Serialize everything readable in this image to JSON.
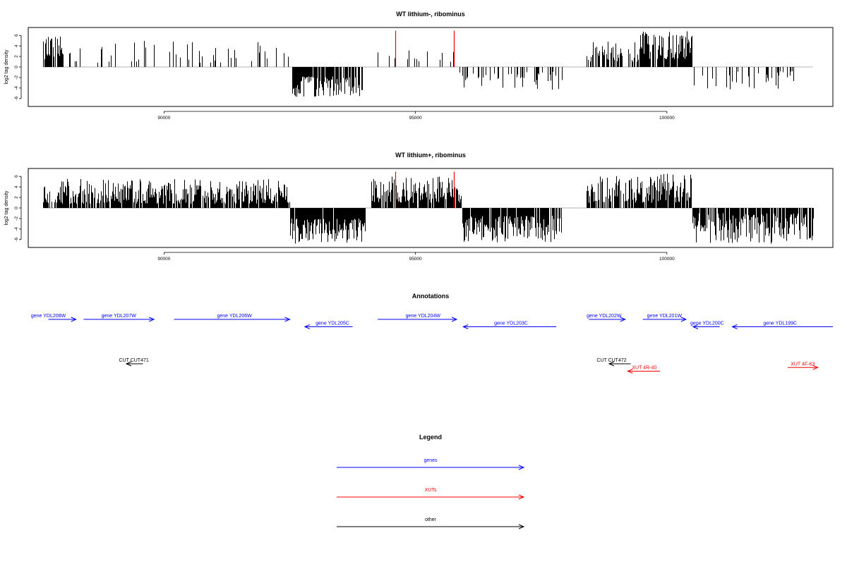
{
  "chart_data": [
    {
      "type": "bar",
      "title": "WT lithium-, ribominus",
      "xlabel": "",
      "ylabel": "log2 tag density",
      "xlim": [
        87300,
        103300
      ],
      "ylim": [
        -7.5,
        7.5
      ],
      "xticks": [
        90000,
        95000,
        100000
      ],
      "xtick_labels": [
        "90000",
        "95000",
        "100000"
      ],
      "yticks": [
        6,
        4,
        2,
        0,
        -2,
        -4,
        -6
      ],
      "ytick_labels": [
        "6",
        "4",
        "2",
        "0",
        "-2",
        "-4",
        "-6"
      ],
      "baseline": {
        "x": [
          87600,
          102900
        ],
        "color": "#999999"
      },
      "markers": [
        {
          "x": 94600,
          "color": "#ff0000"
        },
        {
          "x": 95760,
          "color": "#ff0000"
        }
      ],
      "segments": [
        {
          "from": 87600,
          "to": 88000,
          "sign": 1,
          "density": 0.9,
          "min": 1.5,
          "max": 5.8
        },
        {
          "from": 88100,
          "to": 92550,
          "sign": 1,
          "density": 0.13,
          "min": 0.8,
          "max": 5.0
        },
        {
          "from": 92550,
          "to": 93950,
          "sign": -1,
          "density": 0.9,
          "min": 1.8,
          "max": 5.8
        },
        {
          "from": 94200,
          "to": 95760,
          "sign": 1,
          "density": 0.12,
          "min": 0.8,
          "max": 3.5
        },
        {
          "from": 95880,
          "to": 97950,
          "sign": -1,
          "density": 0.28,
          "min": 0.8,
          "max": 4.4
        },
        {
          "from": 98400,
          "to": 99450,
          "sign": 1,
          "density": 0.5,
          "min": 1.0,
          "max": 5.0
        },
        {
          "from": 99450,
          "to": 100500,
          "sign": 1,
          "density": 0.9,
          "min": 1.5,
          "max": 6.8
        },
        {
          "from": 100500,
          "to": 102600,
          "sign": -1,
          "density": 0.2,
          "min": 0.8,
          "max": 4.3
        },
        {
          "from": 102300,
          "to": 102800,
          "sign": 1,
          "density": 0.05,
          "min": 0.8,
          "max": 2.6
        }
      ]
    },
    {
      "type": "bar",
      "title": "WT lithium+, ribominus",
      "xlabel": "",
      "ylabel": "log2 tag density",
      "xlim": [
        87300,
        103300
      ],
      "ylim": [
        -7.5,
        7.5
      ],
      "xticks": [
        90000,
        95000,
        100000
      ],
      "xtick_labels": [
        "90000",
        "95000",
        "100000"
      ],
      "yticks": [
        6,
        4,
        2,
        0,
        -2,
        -4,
        -6
      ],
      "ytick_labels": [
        "6",
        "4",
        "2",
        "0",
        "-2",
        "-4",
        "-6"
      ],
      "baseline": {
        "x": [
          87600,
          102900
        ],
        "color": "#999999"
      },
      "markers": [
        {
          "x": 94600,
          "color": "#ff0000"
        },
        {
          "x": 95760,
          "color": "#ff0000"
        }
      ],
      "segments": [
        {
          "from": 87600,
          "to": 92500,
          "sign": 1,
          "density": 0.85,
          "min": 0.8,
          "max": 5.5
        },
        {
          "from": 92500,
          "to": 94000,
          "sign": -1,
          "density": 0.95,
          "min": 2.0,
          "max": 6.8
        },
        {
          "from": 94100,
          "to": 95900,
          "sign": 1,
          "density": 0.9,
          "min": 1.0,
          "max": 6.0
        },
        {
          "from": 95900,
          "to": 97900,
          "sign": -1,
          "density": 0.85,
          "min": 1.5,
          "max": 6.5
        },
        {
          "from": 98400,
          "to": 100500,
          "sign": 1,
          "density": 0.85,
          "min": 1.0,
          "max": 6.5
        },
        {
          "from": 100500,
          "to": 102900,
          "sign": -1,
          "density": 0.85,
          "min": 1.0,
          "max": 6.8
        }
      ]
    }
  ],
  "annotations": {
    "title": "Annotations",
    "features": [
      {
        "label": "gene YDL208W",
        "start": 87700,
        "end": 88250,
        "strand": "+",
        "row": 0,
        "color": "#0000ff",
        "label_x": 87700
      },
      {
        "label": "gene YDL207W",
        "start": 88400,
        "end": 89800,
        "strand": "+",
        "row": 0,
        "color": "#0000ff",
        "label_x": 89100
      },
      {
        "label": "gene YDL206W",
        "start": 90200,
        "end": 92500,
        "strand": "+",
        "row": 0,
        "color": "#0000ff",
        "label_x": 91400
      },
      {
        "label": "gene YDL205C",
        "start": 92800,
        "end": 93750,
        "strand": "-",
        "row": 1,
        "color": "#0000ff",
        "label_x": 93350
      },
      {
        "label": "gene YDL204W",
        "start": 94250,
        "end": 95820,
        "strand": "+",
        "row": 0,
        "color": "#0000ff",
        "label_x": 95150
      },
      {
        "label": "gene YDL203C",
        "start": 95950,
        "end": 97800,
        "strand": "-",
        "row": 1,
        "color": "#0000ff",
        "label_x": 96900
      },
      {
        "label": "gene YDL202W",
        "start": 98450,
        "end": 99170,
        "strand": "+",
        "row": 0,
        "color": "#0000ff",
        "label_x": 98750
      },
      {
        "label": "gene YDL201W",
        "start": 99520,
        "end": 100380,
        "strand": "+",
        "row": 0,
        "color": "#0000ff",
        "label_x": 99950
      },
      {
        "label": "gene YDL200C",
        "start": 100520,
        "end": 101050,
        "strand": "-",
        "row": 1,
        "color": "#0000ff",
        "label_x": 100800
      },
      {
        "label": "gene YDL199C",
        "start": 101300,
        "end": 103300,
        "strand": "-",
        "row": 1,
        "color": "#0000ff",
        "label_x": 102250
      },
      {
        "label": "CUT CUT471",
        "start": 89250,
        "end": 89580,
        "strand": "-",
        "row": 2,
        "color": "#000000",
        "label_x": 89400
      },
      {
        "label": "CUT CUT472",
        "start": 98850,
        "end": 99280,
        "strand": "-",
        "row": 2,
        "color": "#000000",
        "label_x": 98900
      },
      {
        "label": "XUT 4R-40",
        "start": 99220,
        "end": 99860,
        "strand": "-",
        "row": 3,
        "color": "#ff0000",
        "label_x": 99550
      },
      {
        "label": "XUT 4F-63",
        "start": 102400,
        "end": 103000,
        "strand": "+",
        "row": 2.5,
        "color": "#ff0000",
        "label_x": 102700
      }
    ]
  },
  "legend": {
    "title": "Legend",
    "items": [
      {
        "label": "genes",
        "color": "#0000ff"
      },
      {
        "label": "XUTs",
        "color": "#ff0000"
      },
      {
        "label": "other",
        "color": "#000000"
      }
    ]
  }
}
